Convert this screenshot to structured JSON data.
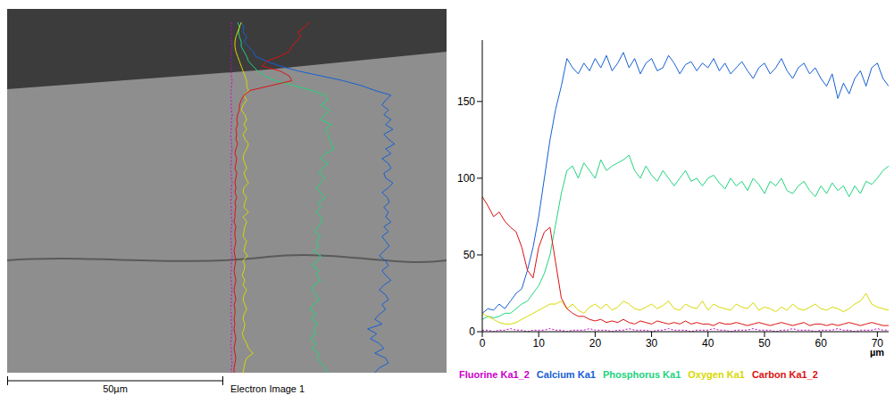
{
  "image": {
    "scale_bar": "50µm",
    "caption": "Electron Image 1"
  },
  "chart_data": {
    "type": "line",
    "x_label": "µm",
    "x": [
      0,
      1,
      2,
      3,
      4,
      5,
      6,
      7,
      8,
      9,
      10,
      11,
      12,
      13,
      14,
      15,
      16,
      17,
      18,
      19,
      20,
      21,
      22,
      23,
      24,
      25,
      26,
      27,
      28,
      29,
      30,
      31,
      32,
      33,
      34,
      35,
      36,
      37,
      38,
      39,
      40,
      41,
      42,
      43,
      44,
      45,
      46,
      47,
      48,
      49,
      50,
      51,
      52,
      53,
      54,
      55,
      56,
      57,
      58,
      59,
      60,
      61,
      62,
      63,
      64,
      65,
      66,
      67,
      68,
      69,
      70,
      71,
      72
    ],
    "xlim": [
      0,
      72
    ],
    "xticks": [
      0,
      10,
      20,
      30,
      40,
      50,
      60,
      70
    ],
    "ylim": [
      0,
      190
    ],
    "yticks": [
      0,
      50,
      100,
      150
    ],
    "grid": false,
    "legend": "bottom",
    "series": [
      {
        "name": "Fluorine Ka1_2",
        "color": "#cc00cc",
        "line_style": "dotted",
        "values": [
          1,
          1,
          0,
          1,
          1,
          2,
          1,
          1,
          0,
          1,
          1,
          1,
          2,
          1,
          1,
          0,
          1,
          1,
          1,
          2,
          1,
          1,
          1,
          0,
          1,
          1,
          2,
          1,
          1,
          1,
          0,
          1,
          1,
          2,
          1,
          1,
          1,
          0,
          1,
          1,
          1,
          2,
          1,
          1,
          0,
          1,
          1,
          1,
          2,
          1,
          1,
          1,
          0,
          1,
          1,
          2,
          1,
          1,
          1,
          0,
          1,
          1,
          1,
          2,
          1,
          1,
          0,
          1,
          1,
          1,
          2,
          1,
          1
        ]
      },
      {
        "name": "Calcium Ka1",
        "color": "#1560d4",
        "values": [
          12,
          15,
          14,
          18,
          15,
          20,
          25,
          28,
          40,
          55,
          75,
          100,
          125,
          145,
          160,
          178,
          172,
          168,
          175,
          170,
          178,
          172,
          180,
          170,
          175,
          182,
          172,
          178,
          168,
          175,
          178,
          170,
          172,
          180,
          175,
          168,
          174,
          176,
          170,
          175,
          172,
          178,
          170,
          175,
          168,
          172,
          176,
          170,
          165,
          172,
          175,
          168,
          172,
          178,
          170,
          165,
          172,
          175,
          168,
          172,
          165,
          160,
          168,
          152,
          162,
          155,
          165,
          170,
          160,
          172,
          175,
          165,
          160
        ]
      },
      {
        "name": "Phosphorus Ka1",
        "color": "#22d47e",
        "values": [
          8,
          10,
          9,
          10,
          12,
          12,
          15,
          18,
          20,
          25,
          30,
          38,
          50,
          70,
          90,
          105,
          108,
          100,
          110,
          105,
          100,
          112,
          105,
          108,
          110,
          112,
          115,
          105,
          100,
          108,
          102,
          98,
          105,
          100,
          95,
          100,
          105,
          98,
          100,
          95,
          100,
          102,
          97,
          93,
          100,
          95,
          98,
          92,
          100,
          96,
          90,
          98,
          95,
          100,
          92,
          90,
          95,
          98,
          92,
          88,
          95,
          90,
          97,
          92,
          95,
          88,
          95,
          90,
          98,
          96,
          100,
          105,
          108
        ]
      },
      {
        "name": "Oxygen Ka1",
        "color": "#d8d800",
        "values": [
          12,
          10,
          8,
          6,
          5,
          5,
          6,
          8,
          10,
          12,
          14,
          16,
          18,
          18,
          20,
          15,
          18,
          14,
          12,
          16,
          18,
          15,
          18,
          14,
          16,
          20,
          18,
          15,
          14,
          16,
          18,
          15,
          17,
          20,
          15,
          14,
          18,
          16,
          15,
          20,
          14,
          18,
          16,
          15,
          14,
          18,
          16,
          15,
          19,
          14,
          16,
          15,
          13,
          16,
          14,
          18,
          15,
          14,
          16,
          18,
          15,
          14,
          16,
          15,
          13,
          15,
          18,
          20,
          25,
          18,
          16,
          15,
          14
        ]
      },
      {
        "name": "Carbon Ka1_2",
        "color": "#dd1111",
        "values": [
          88,
          82,
          75,
          78,
          72,
          68,
          65,
          55,
          40,
          35,
          55,
          65,
          68,
          45,
          22,
          15,
          12,
          10,
          10,
          8,
          7,
          8,
          6,
          7,
          6,
          8,
          6,
          5,
          7,
          6,
          5,
          7,
          6,
          5,
          6,
          5,
          7,
          5,
          6,
          5,
          5,
          4,
          6,
          5,
          5,
          6,
          5,
          4,
          5,
          6,
          5,
          4,
          5,
          6,
          5,
          4,
          5,
          6,
          4,
          5,
          5,
          4,
          5,
          4,
          5,
          6,
          5,
          4,
          5,
          6,
          5,
          4,
          4
        ]
      }
    ]
  }
}
